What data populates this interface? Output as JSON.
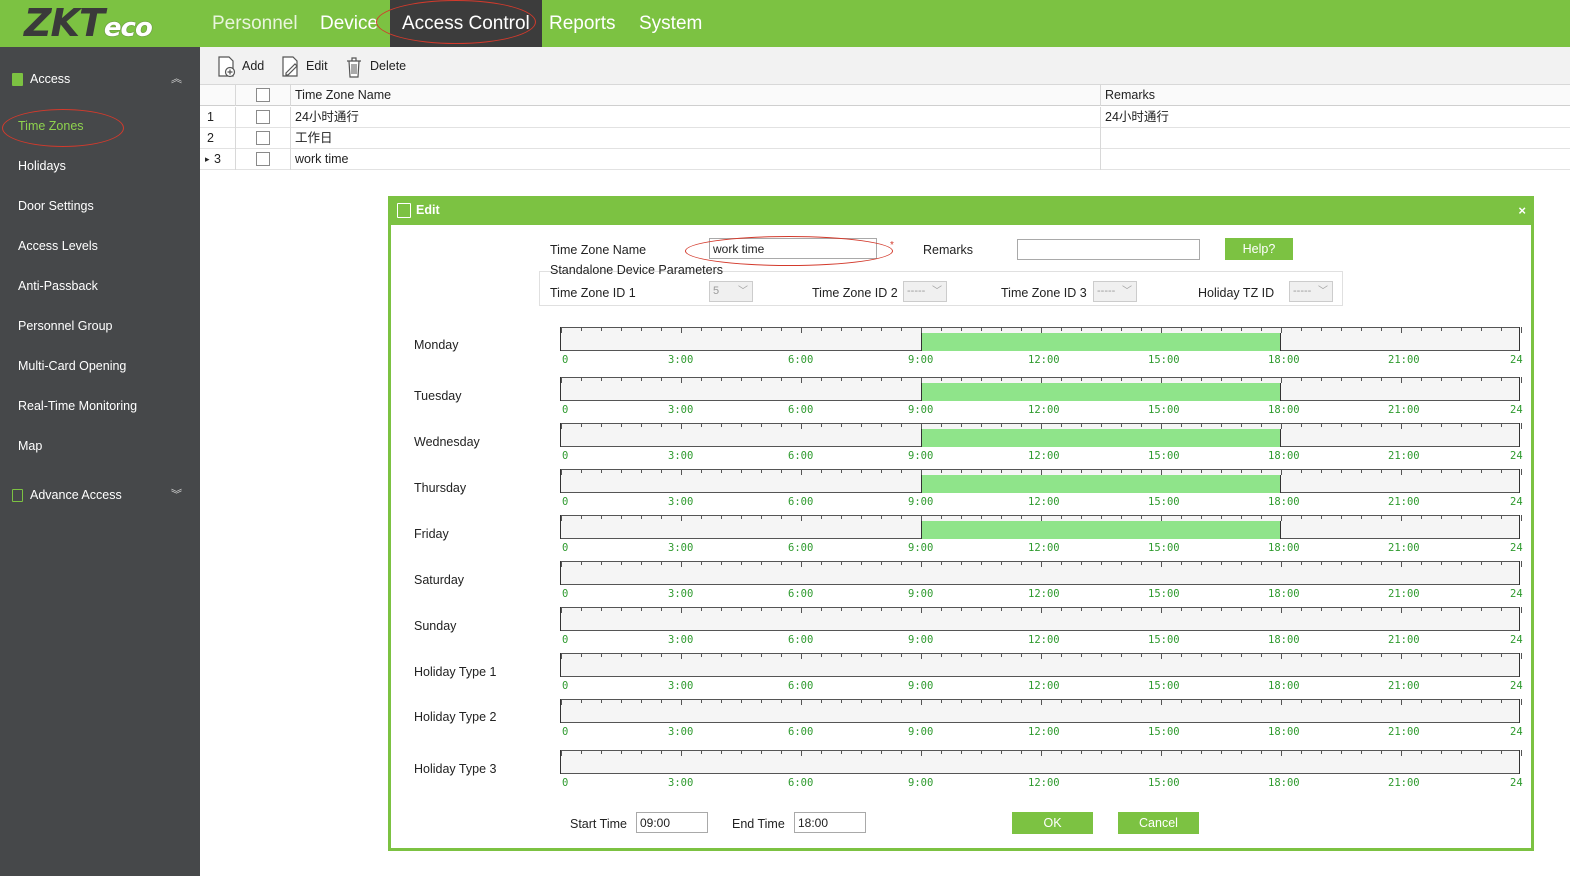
{
  "brand": {
    "logo_zk": "ZKT",
    "logo_eco": "eco"
  },
  "topnav": [
    "Personnel",
    "Device",
    "Access Control",
    "Reports",
    "System"
  ],
  "sidebar": {
    "group1": "Access",
    "items": [
      "Time Zones",
      "Holidays",
      "Door Settings",
      "Access Levels",
      "Anti-Passback",
      "Personnel Group",
      "Multi-Card Opening",
      "Real-Time Monitoring",
      "Map"
    ],
    "group2": "Advance Access",
    "active_item": "Time Zones"
  },
  "toolbar": {
    "add": "Add",
    "edit": "Edit",
    "delete": "Delete"
  },
  "grid": {
    "columns": [
      "Time Zone Name",
      "Remarks"
    ],
    "rows": [
      {
        "num": "1",
        "name": "24小时通行",
        "remarks": "24小时通行"
      },
      {
        "num": "2",
        "name": "工作日",
        "remarks": ""
      },
      {
        "num": "3",
        "name": "work time",
        "remarks": ""
      }
    ],
    "current_row_marker": "▸"
  },
  "dialog": {
    "title": "Edit",
    "close": "×",
    "tz_name_label": "Time Zone Name",
    "tz_name_value": "work time",
    "required_mark": "*",
    "remarks_label": "Remarks",
    "remarks_value": "",
    "help": "Help?",
    "standalone_label": "Standalone Device Parameters",
    "tz_id1_label": "Time Zone ID 1",
    "tz_id1_value": "5",
    "tz_id2_label": "Time Zone ID 2",
    "tz_id2_value": "-----",
    "tz_id3_label": "Time Zone ID 3",
    "tz_id3_value": "-----",
    "holiday_tz_label": "Holiday TZ ID",
    "holiday_tz_value": "-----",
    "select_chevron": "﹀",
    "start_label": "Start Time",
    "start_value": "09:00",
    "end_label": "End Time",
    "end_value": "18:00",
    "ok": "OK",
    "cancel": "Cancel"
  },
  "schedule": {
    "hour_labels": [
      "0",
      "3:00",
      "6:00",
      "9:00",
      "12:00",
      "15:00",
      "18:00",
      "21:00",
      "24"
    ],
    "hours_max": 24,
    "days": [
      {
        "name": "Monday",
        "start_hour": 9,
        "end_hour": 18
      },
      {
        "name": "Tuesday",
        "start_hour": 9,
        "end_hour": 18
      },
      {
        "name": "Wednesday",
        "start_hour": 9,
        "end_hour": 18
      },
      {
        "name": "Thursday",
        "start_hour": 9,
        "end_hour": 18
      },
      {
        "name": "Friday",
        "start_hour": 9,
        "end_hour": 18
      },
      {
        "name": "Saturday",
        "start_hour": null,
        "end_hour": null
      },
      {
        "name": "Sunday",
        "start_hour": null,
        "end_hour": null
      },
      {
        "name": "Holiday Type 1",
        "start_hour": null,
        "end_hour": null
      },
      {
        "name": "Holiday Type 2",
        "start_hour": null,
        "end_hour": null
      },
      {
        "name": "Holiday Type 3",
        "start_hour": null,
        "end_hour": null
      }
    ],
    "segment_color": "#8fe48a",
    "label_color": "#2e9a2e"
  },
  "colors": {
    "brand_green": "#7cc242",
    "sidebar": "#46484a",
    "highlight_ellipse": "#d33a2c"
  }
}
